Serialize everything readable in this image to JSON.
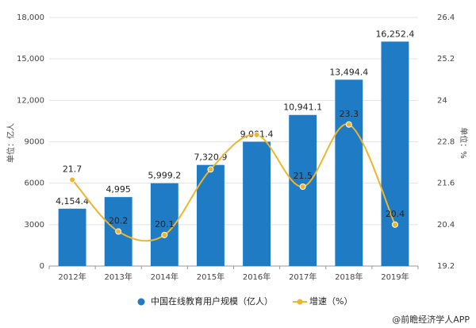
{
  "chart_data": {
    "type": "bar_line",
    "categories": [
      "2012年",
      "2013年",
      "2014年",
      "2015年",
      "2016年",
      "2017年",
      "2018年",
      "2019年"
    ],
    "series": [
      {
        "name": "中国在线教育用户规模（亿人）",
        "color": "#1f7bc3",
        "type": "bar",
        "values": [
          4154.4,
          4995,
          5999.2,
          7320.9,
          9001.4,
          10941.1,
          13494.4,
          16252.4
        ],
        "value_labels": [
          "4,154.4",
          "4,995",
          "5,999.2",
          "7,320.9",
          "9,001.4",
          "10,941.1",
          "13,494.4",
          "16,252.4"
        ]
      },
      {
        "name": "增速（%）",
        "color": "#efb52c",
        "type": "line",
        "axis": "y2",
        "values": [
          21.7,
          20.2,
          20.1,
          22.0,
          23.0,
          21.5,
          23.3,
          20.4
        ],
        "value_labels": [
          "21.7",
          "20.2",
          "20.1",
          null,
          null,
          "21.5",
          "23.3",
          "20.4"
        ]
      }
    ],
    "ylabel": "单位：亿人",
    "y2label": "单位：%",
    "ylim": [
      0,
      18000
    ],
    "yticks": [
      0,
      3000,
      6000,
      9000,
      {
        "value": 12000,
        "label": "12,000"
      },
      {
        "value": 15000,
        "label": "15,000"
      },
      {
        "value": 18000,
        "label": "18,000"
      }
    ],
    "y2lim": [
      19.2,
      26.4
    ],
    "y2ticks": [
      19.2,
      20.4,
      21.6,
      22.8,
      24,
      25.2,
      26.4
    ],
    "grid": true,
    "source": "@前瞻经济学人APP"
  }
}
